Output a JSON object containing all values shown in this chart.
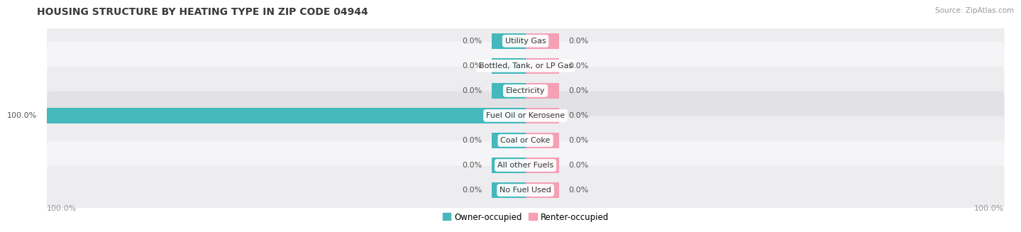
{
  "title": "Housing Structure by Heating Type in Zip Code 04944",
  "title_display": "HOUSING STRUCTURE BY HEATING TYPE IN ZIP CODE 04944",
  "source": "Source: ZipAtlas.com",
  "categories": [
    "Utility Gas",
    "Bottled, Tank, or LP Gas",
    "Electricity",
    "Fuel Oil or Kerosene",
    "Coal or Coke",
    "All other Fuels",
    "No Fuel Used"
  ],
  "owner_values": [
    0.0,
    0.0,
    0.0,
    100.0,
    0.0,
    0.0,
    0.0
  ],
  "renter_values": [
    0.0,
    0.0,
    0.0,
    0.0,
    0.0,
    0.0,
    0.0
  ],
  "owner_color": "#45b8bc",
  "renter_color": "#f4a0b5",
  "row_bg_colors": [
    "#ededf0",
    "#f5f5f7",
    "#ededf0",
    "#e2e2e6",
    "#ededf0",
    "#f5f5f7",
    "#ededf0"
  ],
  "title_color": "#3a3a3a",
  "source_color": "#999999",
  "value_color": "#555555",
  "axis_label_color": "#999999",
  "legend_owner": "Owner-occupied",
  "legend_renter": "Renter-occupied",
  "x_min": -100,
  "x_max": 100,
  "stub_size": 7,
  "bar_height": 0.62
}
